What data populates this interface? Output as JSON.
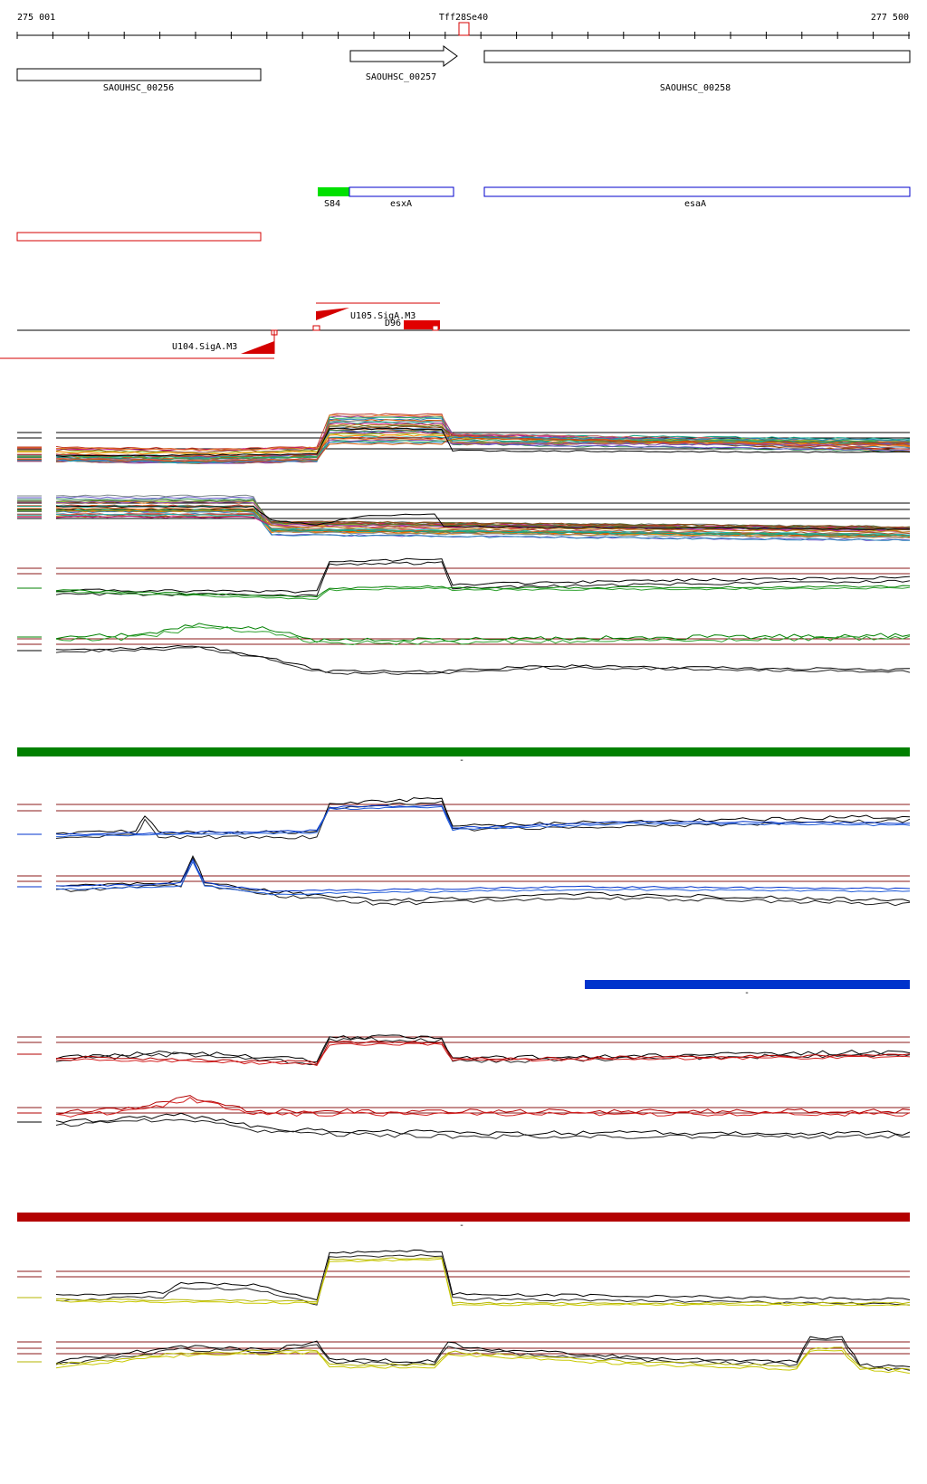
{
  "ruler": {
    "start_label": "275 001",
    "end_label": "277 500",
    "center_label": "Tff28Se40",
    "start": 275001,
    "end": 277500
  },
  "genes": [
    {
      "label": "SAOUHSC_00256",
      "strand": "none"
    },
    {
      "label": "SAOUHSC_00257",
      "strand": "forward"
    },
    {
      "label": "SAOUHSC_00258",
      "strand": "none"
    }
  ],
  "features": [
    {
      "label": "S84",
      "color": "#00e000"
    },
    {
      "label": "esxA",
      "color": "#0000cc"
    },
    {
      "label": "esaA",
      "color": "#0000cc"
    }
  ],
  "promoters": [
    {
      "label": "U105.SigA.M3"
    },
    {
      "label": "D96"
    },
    {
      "label": "U104.SigA.M3"
    }
  ],
  "separators": [
    {
      "color": "#008000",
      "label": "-"
    },
    {
      "color": "#0033cc",
      "label": "-"
    },
    {
      "color": "#b30000",
      "label": "-"
    }
  ],
  "colors": {
    "gene_outline": "#000000",
    "feature_outline": "#0000cc",
    "terminator": "#d40000",
    "reference_line": "#8b1a1a"
  }
}
